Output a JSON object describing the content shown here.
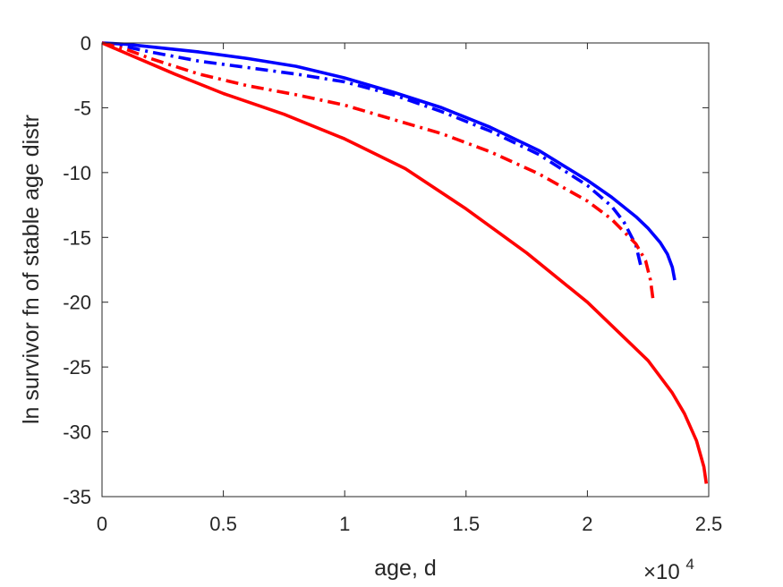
{
  "chart_data": {
    "type": "line",
    "xlabel": "age, d",
    "ylabel": "ln survivor fn of stable age distr",
    "x_multiplier": {
      "base": "×10",
      "exponent": "4"
    },
    "xlim": [
      0,
      25000
    ],
    "ylim": [
      -35,
      0
    ],
    "x_ticks": [
      0,
      5000,
      10000,
      15000,
      20000,
      25000
    ],
    "x_tick_labels": [
      "0",
      "0.5",
      "1",
      "1.5",
      "2",
      "2.5"
    ],
    "y_ticks": [
      0,
      -5,
      -10,
      -15,
      -20,
      -25,
      -30,
      -35
    ],
    "y_tick_labels": [
      "0",
      "-5",
      "-10",
      "-15",
      "-20",
      "-25",
      "-30",
      "-35"
    ],
    "grid": false,
    "legend": "none",
    "series": [
      {
        "color": "#0000ff",
        "style": "solid",
        "x": [
          0,
          1000,
          2000,
          4000,
          6000,
          8000,
          10000,
          12000,
          14000,
          16000,
          18000,
          20000,
          21000,
          22000,
          22500,
          23000,
          23300,
          23500,
          23600
        ],
        "y": [
          0,
          -0.1,
          -0.3,
          -0.7,
          -1.2,
          -1.8,
          -2.7,
          -3.8,
          -5.0,
          -6.5,
          -8.3,
          -10.6,
          -11.9,
          -13.4,
          -14.3,
          -15.4,
          -16.3,
          -17.3,
          -18.3
        ]
      },
      {
        "color": "#0000ff",
        "style": "dashdot",
        "x": [
          0,
          1000,
          2000,
          4000,
          6000,
          8000,
          10000,
          12000,
          14000,
          16000,
          18000,
          20000,
          21000,
          21500,
          22000,
          22200
        ],
        "y": [
          0,
          -0.3,
          -0.7,
          -1.4,
          -1.9,
          -2.4,
          -3.0,
          -4.0,
          -5.3,
          -6.8,
          -8.6,
          -11.0,
          -12.6,
          -13.8,
          -15.6,
          -17.2
        ]
      },
      {
        "color": "#ff0000",
        "style": "dashdot",
        "x": [
          0,
          1000,
          2000,
          4000,
          6000,
          8000,
          10000,
          12000,
          14000,
          16000,
          18000,
          20000,
          21000,
          22000,
          22400,
          22600,
          22700
        ],
        "y": [
          0,
          -0.5,
          -1.2,
          -2.4,
          -3.3,
          -4.0,
          -4.8,
          -5.9,
          -7.0,
          -8.4,
          -10.1,
          -12.2,
          -13.6,
          -15.5,
          -16.8,
          -18.3,
          -19.7
        ]
      },
      {
        "color": "#ff0000",
        "style": "solid",
        "x": [
          0,
          1000,
          2000,
          3000,
          5000,
          7500,
          10000,
          12500,
          15000,
          17500,
          20000,
          22500,
          23500,
          24000,
          24500,
          24800,
          24900
        ],
        "y": [
          0,
          -0.8,
          -1.6,
          -2.4,
          -3.9,
          -5.5,
          -7.4,
          -9.7,
          -12.8,
          -16.2,
          -20.0,
          -24.5,
          -27.0,
          -28.6,
          -30.7,
          -32.7,
          -34.0
        ]
      }
    ]
  }
}
